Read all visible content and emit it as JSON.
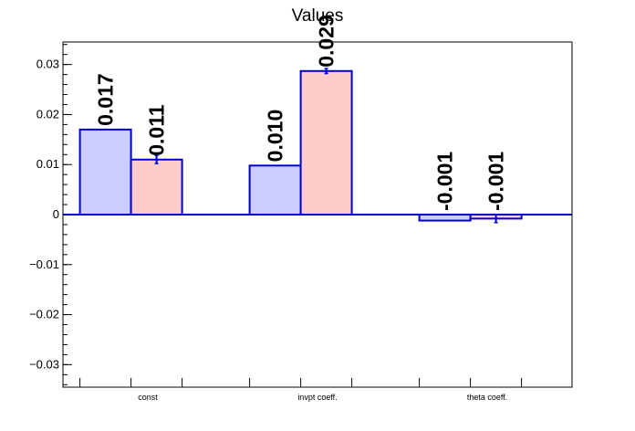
{
  "chart_data": {
    "type": "bar",
    "title": "Values",
    "xlabel": "",
    "ylabel": "",
    "categories": [
      "const",
      "invpt coeff.",
      "theta coeff."
    ],
    "ylim": [
      -0.0345,
      0.0345
    ],
    "yticks": [
      -0.03,
      -0.02,
      -0.01,
      0,
      0.01,
      0.02,
      0.03
    ],
    "ytick_labels": [
      "−0.03",
      "−0.02",
      "−0.01",
      "0",
      "0.01",
      "0.02",
      "0.03"
    ],
    "grid": false,
    "series": [
      {
        "values": [
          0.017,
          0.0098,
          -0.0012
        ],
        "errors": [
          0.0,
          0.0,
          0.0
        ],
        "labels": [
          "0.017",
          "0.010",
          "-0.001"
        ],
        "fill": "#ccccff",
        "edge": "#0000cc"
      },
      {
        "values": [
          0.011,
          0.0287,
          -0.0008
        ],
        "errors": [
          0.0008,
          0.0005,
          0.0008
        ],
        "labels": [
          "0.011",
          "0.029",
          "-0.001"
        ],
        "fill": "#ffcccc",
        "edge": "#0000cc"
      }
    ]
  }
}
